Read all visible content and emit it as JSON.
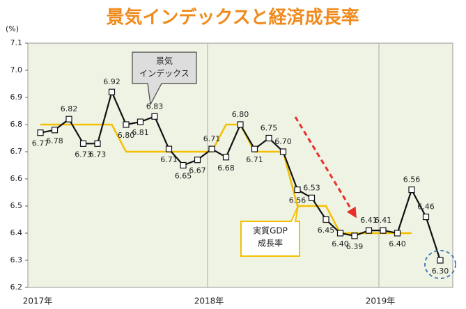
{
  "chart_data": {
    "type": "line",
    "title": "景気インデックスと経済成長率",
    "y_unit": "(%)",
    "categories": [
      "2017年",
      null,
      null,
      null,
      null,
      null,
      null,
      null,
      null,
      null,
      null,
      null,
      "2018年",
      null,
      null,
      null,
      null,
      null,
      null,
      null,
      null,
      null,
      null,
      null,
      "2019年",
      null,
      null,
      null,
      null
    ],
    "series": [
      {
        "color": "#111111",
        "marker": "square",
        "values": [
          6.77,
          6.78,
          6.82,
          6.73,
          6.73,
          6.92,
          6.8,
          6.81,
          6.83,
          6.71,
          6.65,
          6.67,
          6.71,
          6.68,
          6.8,
          6.71,
          6.75,
          6.7,
          6.56,
          6.53,
          6.45,
          6.4,
          6.39,
          6.41,
          6.41,
          6.4,
          6.56,
          6.46,
          6.3
        ],
        "value_labels": [
          "6.77",
          "6.78",
          "6.82",
          "6.73",
          "6.73",
          "6.92",
          "6.80",
          "6.81",
          "6.83",
          "6.71",
          "6.65",
          "6.67",
          "6.71",
          "6.68",
          "6.80",
          "6.71",
          "6.75",
          "6.70",
          "6.56",
          "6.53",
          "6.45",
          "6.40",
          "6.39",
          "6.41",
          "6.41",
          "6.40",
          "6.56",
          "6.46",
          "6.30"
        ]
      },
      {
        "color": "#f5c000",
        "values": [
          6.8,
          6.8,
          6.8,
          6.8,
          6.8,
          6.8,
          6.7,
          6.7,
          6.7,
          6.7,
          6.7,
          6.7,
          6.7,
          6.8,
          6.8,
          6.7,
          6.7,
          6.7,
          6.5,
          6.5,
          6.5,
          6.4,
          6.4,
          6.4,
          6.4,
          6.4,
          6.4,
          null,
          null
        ]
      }
    ],
    "annotations": [
      {
        "lines": [
          "景気",
          "インデックス"
        ]
      },
      {
        "lines": [
          "実質GDP",
          "成長率"
        ]
      }
    ],
    "ylim": [
      6.2,
      7.1
    ],
    "yticks": [
      6.2,
      6.3,
      6.4,
      6.5,
      6.6,
      6.7,
      6.8,
      6.9,
      {
        "value": 7,
        "label": "7.0"
      },
      7.1
    ]
  }
}
